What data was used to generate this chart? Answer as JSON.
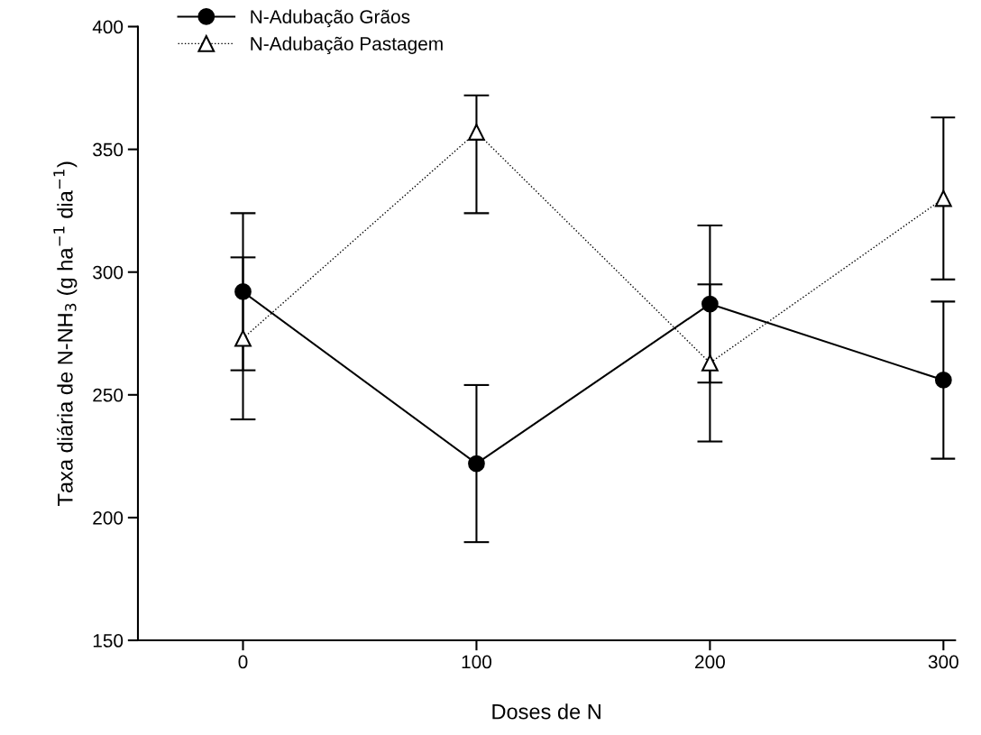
{
  "chart_data": {
    "type": "line",
    "xlabel": "Doses de N",
    "ylabel": "Taxa diária de N-NH$_{3}$ (g ha$^{−1}$ dia$^{−1}$)",
    "x": [
      0,
      100,
      200,
      300
    ],
    "series": [
      {
        "name": "N-Adubação Grãos",
        "color": "#000000",
        "values": [
          292,
          222,
          287,
          256
        ],
        "errors": [
          32,
          32,
          32,
          32
        ],
        "marker": "circle",
        "line_style": "solid"
      },
      {
        "name": "N-Adubação Pastagem",
        "color": "#000000",
        "values": [
          273,
          357,
          263,
          330
        ],
        "errors": [
          33,
          [
            324,
            372
          ],
          32,
          33
        ],
        "marker": "triangle",
        "line_style": "dotted"
      }
    ],
    "xlim": [
      -45,
      305
    ],
    "xticks": [
      0,
      100,
      200,
      300
    ],
    "ylim": [
      150,
      400
    ],
    "yticks": [
      150,
      200,
      250,
      300,
      350,
      400
    ],
    "grid": false,
    "legend": "top left"
  }
}
